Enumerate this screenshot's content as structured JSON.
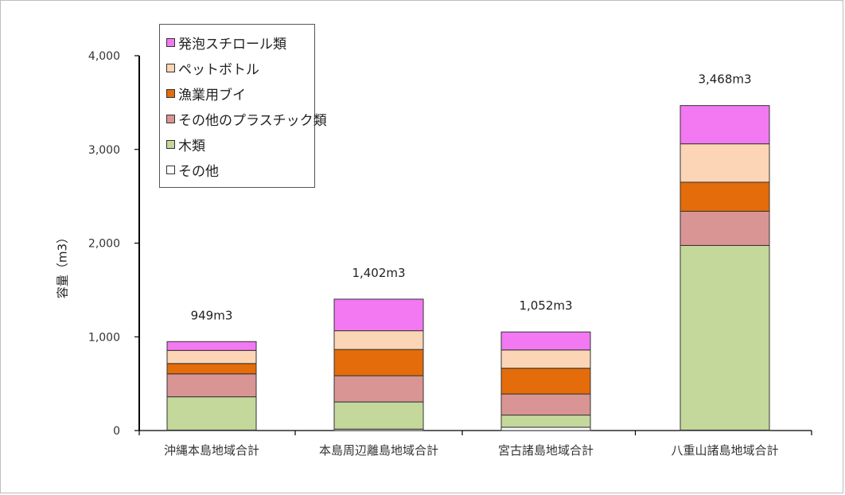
{
  "chart_data": {
    "type": "bar",
    "stacked": true,
    "title": "",
    "xlabel": "",
    "ylabel": "容量（m3）",
    "ylim": [
      0,
      4000
    ],
    "yticks": [
      0,
      1000,
      2000,
      3000,
      4000
    ],
    "ytick_labels": [
      "0",
      "1,000",
      "2,000",
      "3,000",
      "4,000"
    ],
    "grid": false,
    "legend_position": "top-left",
    "categories": [
      "沖縄本島地域合計",
      "本島周辺離島地域合計",
      "宮古諸島地域合計",
      "八重山諸島地域合計"
    ],
    "totals": [
      "949m3",
      "1,402m3",
      "1,052m3",
      "3,468m3"
    ],
    "series": [
      {
        "name": "その他",
        "color": "#ffffff",
        "values": [
          5,
          15,
          35,
          5
        ]
      },
      {
        "name": "木類",
        "color": "#c4d89b",
        "values": [
          355,
          290,
          130,
          1970
        ]
      },
      {
        "name": "その他のプラスチック類",
        "color": "#d99594",
        "values": [
          245,
          280,
          225,
          365
        ]
      },
      {
        "name": "漁業用ブイ",
        "color": "#e46c0a",
        "values": [
          110,
          280,
          275,
          310
        ]
      },
      {
        "name": "ペットボトル",
        "color": "#fbd5b5",
        "values": [
          140,
          200,
          195,
          410
        ]
      },
      {
        "name": "発泡スチロール類",
        "color": "#f279f2",
        "values": [
          94,
          337,
          192,
          408
        ]
      }
    ]
  }
}
